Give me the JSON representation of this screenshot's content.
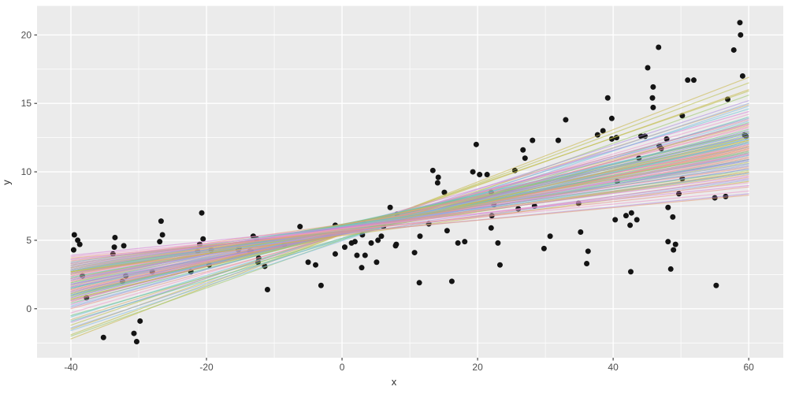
{
  "chart_data": {
    "type": "scatter",
    "title": "",
    "xlabel": "x",
    "ylabel": "y",
    "xlim": [
      -45.0,
      65.1
    ],
    "ylim": [
      -3.58,
      22.12
    ],
    "x_ticks": [
      -40,
      -20,
      0,
      20,
      40,
      60
    ],
    "y_ticks": [
      0,
      5,
      10,
      15,
      20
    ],
    "x_minor_ticks": [
      -30,
      -10,
      10,
      30,
      50
    ],
    "y_minor_ticks": [
      -2.5,
      2.5,
      7.5,
      12.5,
      17.5
    ],
    "grid": true,
    "legend": "none",
    "colors": {
      "panel_bg": "#ebebeb",
      "grid": "#ffffff",
      "point": "#141414",
      "axis_text": "#4d4d4d",
      "axis_title": "#2e2e2e",
      "tick_mark": "#333333"
    },
    "line_palette": [
      "#e38da0",
      "#ef9bcd",
      "#d884d8",
      "#b18fe0",
      "#9a8ed4",
      "#92a8d8",
      "#82bce6",
      "#6cc5d8",
      "#5ec4b0",
      "#6ec887",
      "#9cc96a",
      "#bcc24f",
      "#c9b84a",
      "#d9b06e",
      "#e6a07a",
      "#e89288"
    ],
    "line_opacity": 0.6,
    "point_radius": 3.5,
    "points": [
      [
        -39.5,
        5.4
      ],
      [
        -39.0,
        5.0
      ],
      [
        -38.7,
        4.7
      ],
      [
        -39.6,
        4.3
      ],
      [
        -38.3,
        2.4
      ],
      [
        -37.7,
        0.8
      ],
      [
        -35.2,
        -2.1
      ],
      [
        -33.5,
        5.2
      ],
      [
        -33.6,
        4.5
      ],
      [
        -32.2,
        4.6
      ],
      [
        -33.8,
        4.0
      ],
      [
        -31.9,
        2.4
      ],
      [
        -32.4,
        2.0
      ],
      [
        -30.7,
        -1.8
      ],
      [
        -30.3,
        -2.4
      ],
      [
        -29.8,
        -0.9
      ],
      [
        -28.0,
        2.7
      ],
      [
        -26.7,
        6.4
      ],
      [
        -26.5,
        5.4
      ],
      [
        -26.9,
        4.9
      ],
      [
        -22.3,
        2.7
      ],
      [
        -21.3,
        4.2
      ],
      [
        -21.0,
        4.7
      ],
      [
        -20.7,
        7.0
      ],
      [
        -20.5,
        5.1
      ],
      [
        -19.6,
        3.2
      ],
      [
        -19.3,
        4.3
      ],
      [
        -15.2,
        4.4
      ],
      [
        -15.3,
        4.3
      ],
      [
        -13.6,
        4.2
      ],
      [
        -13.4,
        4.2
      ],
      [
        -13.1,
        5.3
      ],
      [
        -12.6,
        5.1
      ],
      [
        -12.3,
        3.7
      ],
      [
        -12.4,
        3.4
      ],
      [
        -11.4,
        3.1
      ],
      [
        -11.0,
        1.4
      ],
      [
        -8.5,
        4.7
      ],
      [
        -6.2,
        6.0
      ],
      [
        -5.0,
        3.4
      ],
      [
        -3.9,
        3.2
      ],
      [
        -3.1,
        1.7
      ],
      [
        -1.0,
        6.1
      ],
      [
        -1.0,
        4.0
      ],
      [
        0.4,
        4.5
      ],
      [
        1.4,
        4.8
      ],
      [
        1.9,
        4.9
      ],
      [
        2.2,
        3.9
      ],
      [
        3.4,
        3.9
      ],
      [
        2.9,
        3.0
      ],
      [
        3.0,
        5.4
      ],
      [
        3.3,
        6.2
      ],
      [
        4.3,
        4.8
      ],
      [
        5.1,
        3.4
      ],
      [
        5.3,
        5.0
      ],
      [
        5.8,
        5.3
      ],
      [
        6.1,
        6.0
      ],
      [
        7.1,
        7.4
      ],
      [
        7.9,
        4.6
      ],
      [
        8.0,
        4.7
      ],
      [
        8.1,
        6.9
      ],
      [
        10.7,
        4.1
      ],
      [
        11.4,
        1.9
      ],
      [
        11.5,
        5.3
      ],
      [
        12.8,
        6.2
      ],
      [
        13.4,
        10.1
      ],
      [
        14.2,
        9.6
      ],
      [
        14.1,
        9.2
      ],
      [
        15.1,
        8.5
      ],
      [
        15.5,
        5.7
      ],
      [
        16.2,
        2.0
      ],
      [
        17.1,
        4.8
      ],
      [
        18.1,
        4.9
      ],
      [
        19.8,
        12.0
      ],
      [
        19.3,
        10.0
      ],
      [
        20.3,
        9.8
      ],
      [
        21.4,
        9.8
      ],
      [
        22.0,
        8.5
      ],
      [
        22.4,
        7.6
      ],
      [
        22.1,
        6.8
      ],
      [
        22.0,
        5.9
      ],
      [
        23.0,
        4.8
      ],
      [
        23.3,
        3.2
      ],
      [
        25.5,
        10.1
      ],
      [
        26.0,
        7.3
      ],
      [
        26.7,
        11.6
      ],
      [
        27.0,
        11.0
      ],
      [
        28.1,
        12.3
      ],
      [
        28.4,
        7.5
      ],
      [
        29.8,
        4.4
      ],
      [
        30.7,
        5.3
      ],
      [
        31.9,
        12.3
      ],
      [
        33.0,
        13.8
      ],
      [
        34.9,
        7.7
      ],
      [
        35.2,
        5.6
      ],
      [
        36.1,
        3.3
      ],
      [
        36.3,
        4.2
      ],
      [
        37.7,
        12.7
      ],
      [
        38.5,
        13.0
      ],
      [
        39.2,
        15.4
      ],
      [
        39.8,
        12.4
      ],
      [
        39.8,
        13.9
      ],
      [
        40.3,
        6.5
      ],
      [
        40.5,
        12.5
      ],
      [
        40.6,
        9.3
      ],
      [
        41.9,
        6.8
      ],
      [
        42.5,
        6.1
      ],
      [
        42.6,
        2.7
      ],
      [
        42.7,
        7.0
      ],
      [
        43.5,
        6.5
      ],
      [
        43.8,
        11.0
      ],
      [
        44.1,
        12.6
      ],
      [
        44.7,
        12.6
      ],
      [
        45.1,
        17.6
      ],
      [
        45.8,
        15.4
      ],
      [
        45.9,
        16.2
      ],
      [
        45.9,
        14.7
      ],
      [
        46.7,
        19.1
      ],
      [
        46.8,
        11.9
      ],
      [
        47.1,
        11.7
      ],
      [
        47.9,
        12.4
      ],
      [
        48.1,
        7.4
      ],
      [
        48.1,
        4.9
      ],
      [
        48.5,
        2.9
      ],
      [
        48.8,
        6.7
      ],
      [
        48.9,
        4.3
      ],
      [
        49.2,
        4.7
      ],
      [
        49.7,
        8.4
      ],
      [
        50.2,
        9.5
      ],
      [
        50.2,
        14.1
      ],
      [
        51.0,
        16.7
      ],
      [
        51.9,
        16.7
      ],
      [
        55.0,
        8.1
      ],
      [
        55.2,
        1.7
      ],
      [
        56.6,
        8.2
      ],
      [
        56.9,
        15.3
      ],
      [
        57.8,
        18.9
      ],
      [
        58.7,
        20.9
      ],
      [
        58.8,
        20.0
      ],
      [
        59.1,
        17.0
      ],
      [
        59.4,
        12.7
      ],
      [
        59.6,
        12.6
      ]
    ],
    "fit_lines": {
      "x_start": -40,
      "x_end": 60,
      "lines_format": "[y_at_x_start, y_at_x_end, palette_index]",
      "lines": [
        [
          -2.2,
          16.9,
          12
        ],
        [
          -1.9,
          16.5,
          11
        ],
        [
          -1.5,
          16.0,
          12
        ],
        [
          -2.0,
          15.6,
          10
        ],
        [
          -1.2,
          15.9,
          11
        ],
        [
          -0.8,
          14.9,
          13
        ],
        [
          -1.0,
          15.2,
          3
        ],
        [
          -0.6,
          14.6,
          7
        ],
        [
          -1.4,
          15.0,
          5
        ],
        [
          -0.3,
          14.2,
          1
        ],
        [
          -0.9,
          14.0,
          8
        ],
        [
          0.1,
          13.9,
          4
        ],
        [
          -0.5,
          13.6,
          9
        ],
        [
          0.3,
          14.4,
          2
        ],
        [
          -1.6,
          14.8,
          6
        ],
        [
          0.0,
          13.5,
          15
        ],
        [
          0.2,
          13.7,
          6
        ],
        [
          2.1,
          12.1,
          2
        ],
        [
          0.4,
          13.1,
          9
        ],
        [
          1.8,
          12.4,
          5
        ],
        [
          0.9,
          13.4,
          13
        ],
        [
          1.5,
          12.9,
          8
        ],
        [
          0.5,
          13.8,
          0
        ],
        [
          0.8,
          13.2,
          1
        ],
        [
          1.0,
          13.5,
          2
        ],
        [
          1.2,
          12.9,
          3
        ],
        [
          0.6,
          13.0,
          4
        ],
        [
          1.5,
          12.6,
          5
        ],
        [
          0.9,
          12.4,
          6
        ],
        [
          1.7,
          12.8,
          7
        ],
        [
          1.1,
          12.1,
          8
        ],
        [
          1.9,
          12.5,
          9
        ],
        [
          0.7,
          12.7,
          10
        ],
        [
          2.0,
          12.3,
          11
        ],
        [
          1.3,
          11.9,
          12
        ],
        [
          2.2,
          12.0,
          13
        ],
        [
          1.6,
          11.7,
          14
        ],
        [
          2.4,
          11.8,
          15
        ],
        [
          1.4,
          12.2,
          0
        ],
        [
          2.1,
          11.6,
          1
        ],
        [
          1.8,
          11.4,
          2
        ],
        [
          2.5,
          11.3,
          3
        ],
        [
          1.0,
          12.6,
          4
        ],
        [
          2.3,
          11.5,
          5
        ],
        [
          1.2,
          12.4,
          6
        ],
        [
          2.6,
          11.2,
          7
        ],
        [
          1.5,
          11.8,
          8
        ],
        [
          2.7,
          11.4,
          9
        ],
        [
          0.9,
          12.9,
          10
        ],
        [
          2.8,
          11.1,
          11
        ],
        [
          1.1,
          12.3,
          12
        ],
        [
          2.2,
          11.3,
          13
        ],
        [
          1.7,
          11.6,
          14
        ],
        [
          2.0,
          11.9,
          15
        ],
        [
          0.6,
          13.3,
          0
        ],
        [
          2.4,
          11.0,
          1
        ],
        [
          1.3,
          12.0,
          2
        ],
        [
          2.6,
          10.9,
          3
        ],
        [
          0.8,
          12.8,
          4
        ],
        [
          2.1,
          11.2,
          5
        ],
        [
          1.6,
          12.1,
          6
        ],
        [
          2.9,
          10.8,
          7
        ],
        [
          1.0,
          12.2,
          8
        ],
        [
          2.3,
          10.9,
          9
        ],
        [
          1.9,
          11.5,
          10
        ],
        [
          2.7,
          10.7,
          11
        ],
        [
          0.7,
          12.5,
          12
        ],
        [
          2.5,
          11.0,
          13
        ],
        [
          1.4,
          11.7,
          14
        ],
        [
          2.8,
          10.6,
          15
        ],
        [
          1.2,
          11.8,
          0
        ],
        [
          2.0,
          11.1,
          1
        ],
        [
          1.6,
          11.3,
          2
        ],
        [
          2.2,
          10.8,
          3
        ],
        [
          1.8,
          10.9,
          4
        ],
        [
          2.6,
          10.5,
          5
        ],
        [
          3.0,
          10.6,
          6
        ],
        [
          2.8,
          10.2,
          7
        ],
        [
          3.2,
          10.4,
          8
        ],
        [
          2.9,
          9.9,
          9
        ],
        [
          3.3,
          10.1,
          10
        ],
        [
          2.7,
          10.0,
          11
        ],
        [
          3.1,
          9.8,
          13
        ],
        [
          3.4,
          10.3,
          14
        ],
        [
          2.6,
          9.6,
          15
        ],
        [
          3.2,
          9.9,
          0
        ],
        [
          2.9,
          10.4,
          1
        ],
        [
          3.3,
          9.7,
          2
        ],
        [
          3.0,
          9.5,
          3
        ],
        [
          3.1,
          10.2,
          4
        ],
        [
          2.8,
          9.4,
          5
        ],
        [
          3.4,
          9.9,
          6
        ],
        [
          2.7,
          9.3,
          12
        ],
        [
          3.0,
          10.0,
          13
        ],
        [
          3.8,
          8.6,
          1
        ],
        [
          3.6,
          8.4,
          3
        ],
        [
          3.9,
          9.0,
          2
        ],
        [
          3.5,
          8.9,
          15
        ],
        [
          3.7,
          8.3,
          14
        ],
        [
          3.6,
          9.2,
          1
        ]
      ]
    }
  }
}
